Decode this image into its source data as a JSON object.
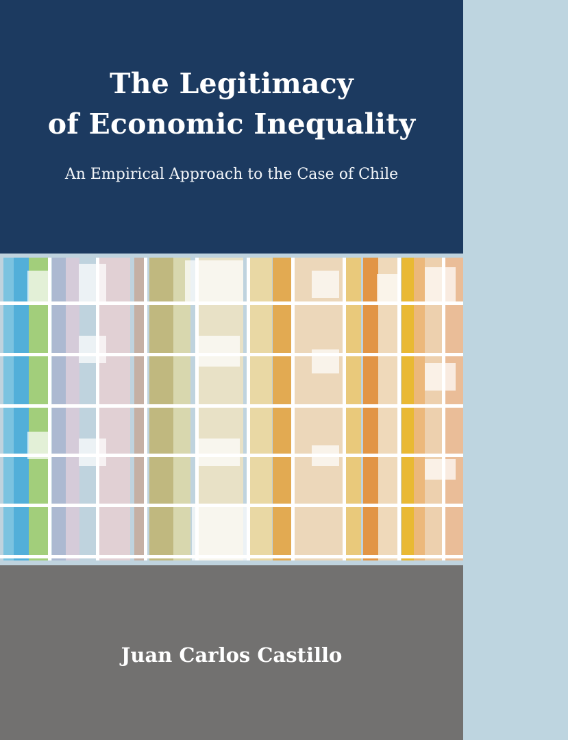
{
  "book": {
    "title_line_1": "The Legitimacy",
    "title_line_2": "of Economic Inequality",
    "subtitle": "An Empirical Approach to the Case of Chile",
    "author": "Juan Carlos Castillo"
  },
  "colors": {
    "title_band": "#1c3a60",
    "author_band": "#727170",
    "spine": "#bed5e0",
    "mosaic_palette": [
      "#4aa9d4",
      "#9ccc6a",
      "#b5a9c8",
      "#e0b8b2",
      "#c4b06a",
      "#e8d29a",
      "#efa94a",
      "#f0b916",
      "#e07b2a",
      "#d97d6a"
    ]
  }
}
